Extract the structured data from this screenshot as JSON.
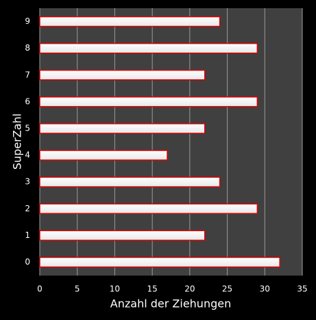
{
  "chart_data": {
    "type": "bar",
    "orientation": "horizontal",
    "x_label": "Anzahl der Ziehungen",
    "y_label": "SuperZahl",
    "categories": [
      "0",
      "1",
      "2",
      "3",
      "4",
      "5",
      "6",
      "7",
      "8",
      "9"
    ],
    "values": [
      32,
      22,
      29,
      24,
      17,
      22,
      29,
      22,
      29,
      24
    ],
    "color": "#ffffff",
    "edge_color": "#e00000",
    "xlim": [
      0,
      35
    ],
    "xticks": [
      0,
      5,
      10,
      15,
      20,
      25,
      30,
      35
    ],
    "grid": true
  }
}
